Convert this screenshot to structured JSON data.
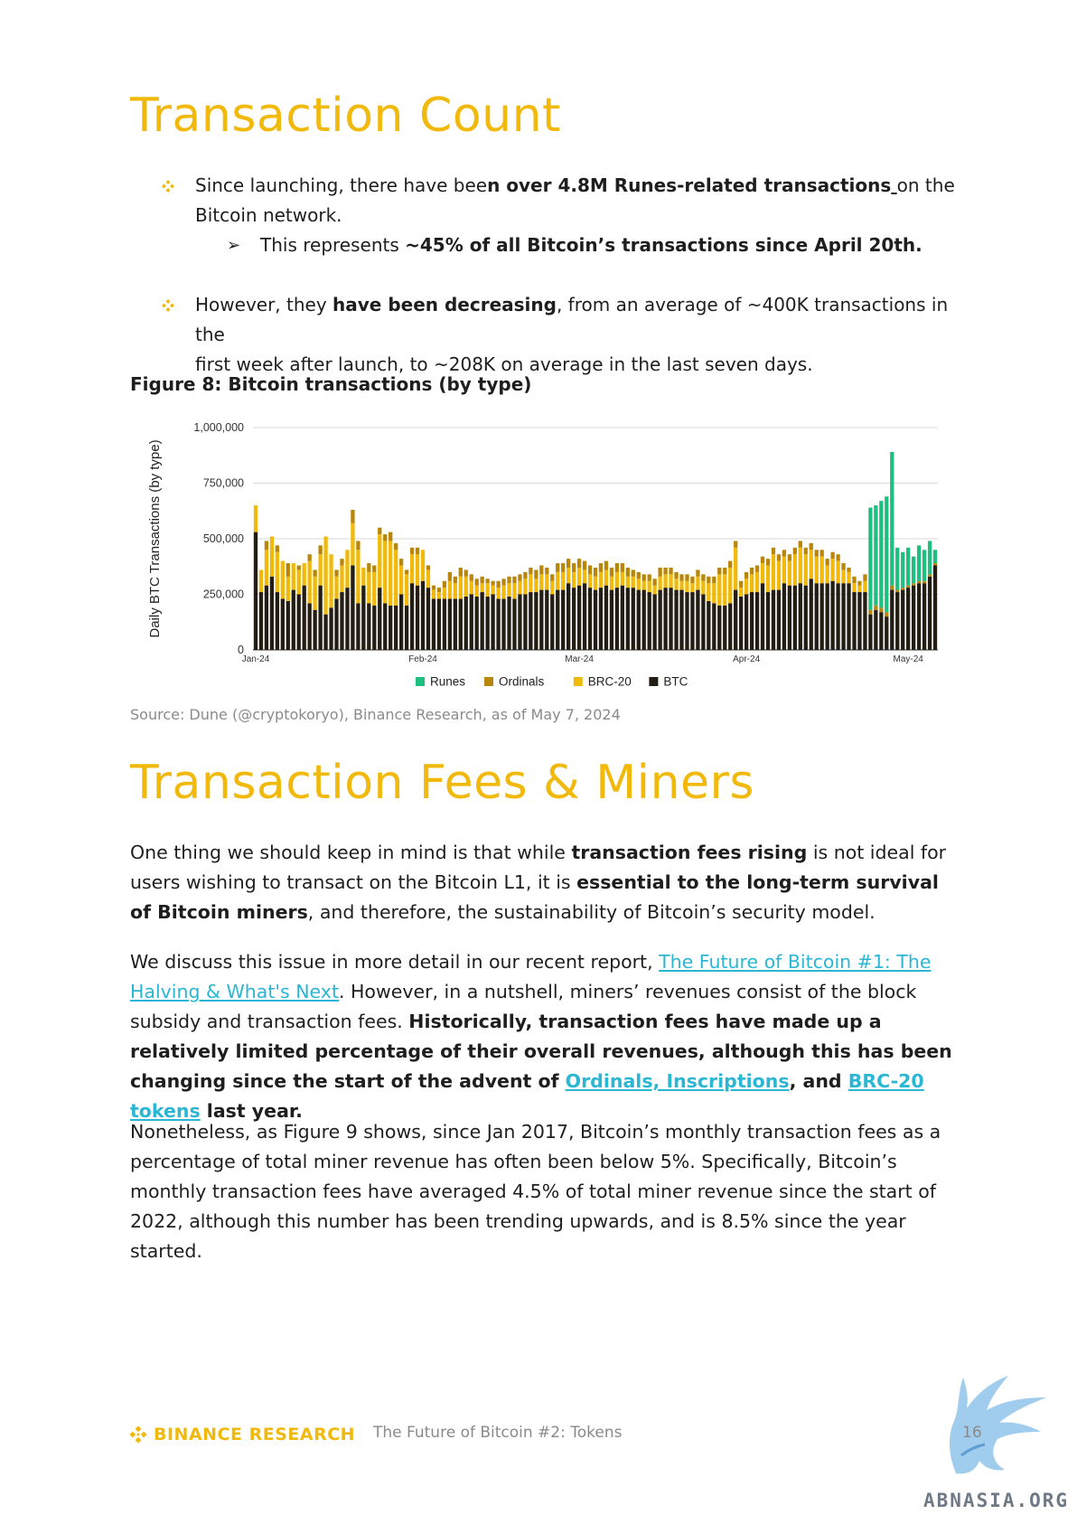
{
  "section1": {
    "title": "Transaction Count",
    "bullet1": {
      "pre": "Since launching, there have bee",
      "bold": "n over 4.8M Runes-related transactions",
      "post_underlined": " ",
      "post": "on the",
      "line2": "Bitcoin network."
    },
    "sub1": {
      "pre": "This represents ",
      "bold": "~45% of all Bitcoin’s transactions since April 20th."
    },
    "bullet2": {
      "pre": "However, they ",
      "bold": "have been decreasing",
      "post": ", from an average of ~400K transactions in the",
      "line2": "first week after launch, to ~208K on average in the last seven days."
    }
  },
  "figure": {
    "title": "Figure 8: Bitcoin transactions (by type)",
    "source": "Source: Dune (@cryptokoryo), Binance Research, as of  May 7, 2024"
  },
  "chart_data": {
    "type": "bar",
    "stacked": true,
    "ylabel": "Daily BTC Transactions (by type)",
    "ylim": [
      0,
      1000000
    ],
    "yticks": [
      "0",
      "250,000",
      "500,000",
      "750,000",
      "1,000,000"
    ],
    "ytick_values": [
      0,
      250000,
      500000,
      750000,
      1000000
    ],
    "xtick_labels": [
      "Jan-24",
      "Feb-24",
      "Mar-24",
      "Apr-24",
      "May-24"
    ],
    "xtick_days": [
      0,
      31,
      60,
      91,
      121
    ],
    "grid": true,
    "legend_position": "bottom",
    "legend": [
      {
        "name": "Runes",
        "color": "#1fbf80"
      },
      {
        "name": "Ordinals",
        "color": "#b8860b"
      },
      {
        "name": "BRC-20",
        "color": "#f0b90b"
      },
      {
        "name": "BTC",
        "color": "#241d14"
      }
    ],
    "series": [
      {
        "name": "BTC",
        "color": "#241d14",
        "values": [
          530000,
          260000,
          290000,
          330000,
          260000,
          230000,
          220000,
          270000,
          250000,
          290000,
          210000,
          180000,
          290000,
          160000,
          190000,
          230000,
          260000,
          280000,
          380000,
          210000,
          290000,
          210000,
          200000,
          280000,
          210000,
          200000,
          200000,
          250000,
          200000,
          300000,
          290000,
          310000,
          280000,
          230000,
          230000,
          230000,
          230000,
          230000,
          230000,
          240000,
          250000,
          240000,
          260000,
          240000,
          250000,
          230000,
          230000,
          240000,
          230000,
          250000,
          250000,
          260000,
          260000,
          270000,
          270000,
          250000,
          270000,
          270000,
          300000,
          280000,
          290000,
          300000,
          280000,
          270000,
          280000,
          290000,
          270000,
          280000,
          290000,
          280000,
          280000,
          270000,
          270000,
          260000,
          250000,
          270000,
          280000,
          280000,
          270000,
          270000,
          260000,
          260000,
          270000,
          250000,
          220000,
          210000,
          200000,
          200000,
          210000,
          270000,
          240000,
          250000,
          260000,
          260000,
          300000,
          260000,
          270000,
          270000,
          300000,
          290000,
          290000,
          300000,
          290000,
          320000,
          300000,
          300000,
          300000,
          310000,
          300000,
          300000,
          300000,
          260000,
          260000,
          260000,
          160000,
          180000,
          170000,
          150000,
          270000,
          260000,
          270000,
          280000,
          290000,
          300000,
          300000,
          330000,
          380000
        ]
      },
      {
        "name": "BRC-20",
        "color": "#f0b90b",
        "values": [
          120000,
          100000,
          160000,
          180000,
          180000,
          170000,
          110000,
          120000,
          110000,
          100000,
          190000,
          150000,
          140000,
          350000,
          240000,
          100000,
          120000,
          170000,
          190000,
          240000,
          80000,
          140000,
          150000,
          240000,
          280000,
          290000,
          250000,
          130000,
          140000,
          130000,
          140000,
          140000,
          80000,
          40000,
          30000,
          50000,
          80000,
          70000,
          100000,
          90000,
          60000,
          50000,
          40000,
          60000,
          40000,
          50000,
          60000,
          60000,
          70000,
          60000,
          70000,
          80000,
          60000,
          70000,
          70000,
          60000,
          80000,
          80000,
          70000,
          70000,
          80000,
          60000,
          60000,
          60000,
          70000,
          70000,
          60000,
          70000,
          60000,
          50000,
          50000,
          50000,
          40000,
          50000,
          40000,
          60000,
          60000,
          60000,
          50000,
          40000,
          50000,
          40000,
          60000,
          60000,
          80000,
          90000,
          140000,
          140000,
          160000,
          190000,
          40000,
          70000,
          80000,
          90000,
          90000,
          120000,
          160000,
          130000,
          120000,
          110000,
          140000,
          160000,
          140000,
          130000,
          120000,
          120000,
          80000,
          100000,
          100000,
          60000,
          50000,
          40000,
          30000,
          50000,
          0,
          0,
          0,
          0,
          0,
          0,
          0,
          0,
          0,
          0,
          0,
          0,
          0
        ]
      },
      {
        "name": "Ordinals",
        "color": "#b8860b",
        "values": [
          0,
          0,
          40000,
          0,
          30000,
          0,
          60000,
          0,
          20000,
          0,
          30000,
          30000,
          40000,
          0,
          0,
          30000,
          30000,
          0,
          60000,
          40000,
          0,
          40000,
          30000,
          30000,
          30000,
          40000,
          30000,
          30000,
          20000,
          30000,
          30000,
          0,
          20000,
          20000,
          20000,
          30000,
          40000,
          30000,
          40000,
          30000,
          30000,
          30000,
          30000,
          20000,
          20000,
          30000,
          30000,
          30000,
          30000,
          30000,
          30000,
          30000,
          40000,
          40000,
          30000,
          30000,
          40000,
          40000,
          40000,
          40000,
          40000,
          40000,
          40000,
          40000,
          40000,
          40000,
          40000,
          40000,
          40000,
          40000,
          30000,
          30000,
          30000,
          30000,
          30000,
          40000,
          30000,
          30000,
          30000,
          30000,
          30000,
          30000,
          30000,
          30000,
          30000,
          30000,
          30000,
          30000,
          30000,
          30000,
          30000,
          30000,
          30000,
          30000,
          30000,
          30000,
          30000,
          30000,
          30000,
          30000,
          30000,
          30000,
          30000,
          30000,
          30000,
          30000,
          30000,
          30000,
          30000,
          30000,
          20000,
          30000,
          20000,
          30000,
          20000,
          20000,
          20000,
          20000,
          20000,
          10000,
          10000,
          10000,
          10000,
          10000,
          10000,
          10000,
          10000
        ]
      },
      {
        "name": "Runes",
        "color": "#1fbf80",
        "values": [
          0,
          0,
          0,
          0,
          0,
          0,
          0,
          0,
          0,
          0,
          0,
          0,
          0,
          0,
          0,
          0,
          0,
          0,
          0,
          0,
          0,
          0,
          0,
          0,
          0,
          0,
          0,
          0,
          0,
          0,
          0,
          0,
          0,
          0,
          0,
          0,
          0,
          0,
          0,
          0,
          0,
          0,
          0,
          0,
          0,
          0,
          0,
          0,
          0,
          0,
          0,
          0,
          0,
          0,
          0,
          0,
          0,
          0,
          0,
          0,
          0,
          0,
          0,
          0,
          0,
          0,
          0,
          0,
          0,
          0,
          0,
          0,
          0,
          0,
          0,
          0,
          0,
          0,
          0,
          0,
          0,
          0,
          0,
          0,
          0,
          0,
          0,
          0,
          0,
          0,
          0,
          0,
          0,
          0,
          0,
          0,
          0,
          0,
          0,
          0,
          0,
          0,
          0,
          0,
          0,
          0,
          0,
          0,
          0,
          0,
          0,
          0,
          0,
          0,
          460000,
          450000,
          480000,
          520000,
          600000,
          190000,
          160000,
          170000,
          120000,
          160000,
          140000,
          150000,
          60000
        ]
      }
    ]
  },
  "section2": {
    "title": "Transaction Fees & Miners",
    "p1": {
      "t1": "One thing we should keep in mind is that while ",
      "b1": "transaction fees rising",
      "t2": " is not ideal for users wishing to transact on the Bitcoin L1, it is ",
      "b2": "essential to the long-term survival of Bitcoin miners",
      "t3": ", and therefore, the sustainability of Bitcoin’s security model."
    },
    "p2": {
      "t1": "We discuss this issue in more detail in our recent report, ",
      "link1": "The Future of Bitcoin #1: The Halving & What's Next",
      "t2": ". However, in a nutshell, miners’ revenues consist of the block subsidy and transaction fees. ",
      "b1": "Historically, transaction fees have made up a relatively limited percentage of their overall revenues, although this has been changing since the start of the advent of ",
      "link2": "Ordinals, Inscriptions",
      "b2": ", and ",
      "link3": "BRC-20 tokens",
      "b3": " last year."
    },
    "p3": "Nonetheless, as Figure 9 shows, since Jan 2017, Bitcoin’s monthly transaction fees as a percentage of total miner revenue has often been below 5%. Specifically, Bitcoin’s monthly transaction fees have averaged 4.5% of total miner revenue since the start of 2022, although this number has been trending upwards, and is 8.5% since the year started."
  },
  "footer": {
    "logo_text": "BINANCE RESEARCH",
    "doc_title": "The Future of Bitcoin #2: Tokens",
    "page_number": "16"
  },
  "watermark": {
    "text": "ABNASIA.ORG",
    "icon": "pegasus-logo-icon"
  },
  "colors": {
    "accent": "#f0b90b",
    "link": "#2bb6d3"
  }
}
